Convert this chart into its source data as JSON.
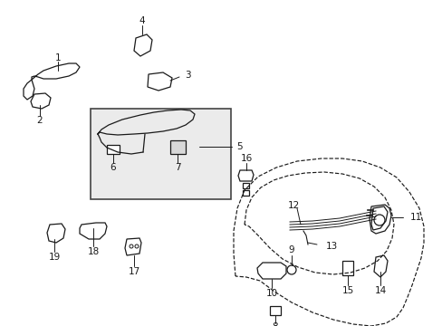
{
  "bg": "#ffffff",
  "lc": "#1a1a1a",
  "box_bg": "#ebebeb",
  "fig_w": 4.89,
  "fig_h": 3.6,
  "dpi": 100,
  "fs": 7.5
}
